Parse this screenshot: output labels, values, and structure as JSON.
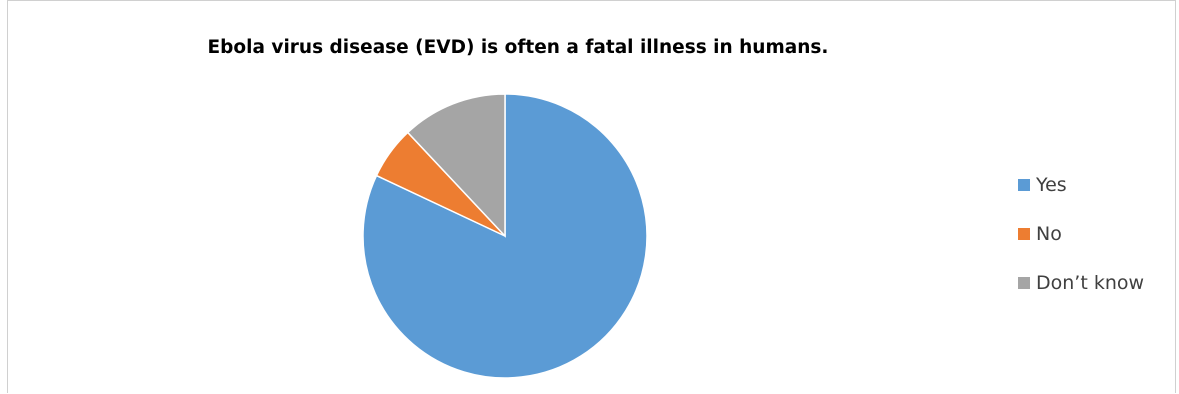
{
  "chart_data": {
    "type": "pie",
    "title": "Ebola virus disease (EVD) is often a fatal illness in humans.",
    "categories": [
      "Yes",
      "No",
      "Don’t know"
    ],
    "values": [
      82,
      6,
      12
    ],
    "colors": [
      "#5b9bd5",
      "#ed7d31",
      "#a5a5a5"
    ],
    "legend_position": "right",
    "start_angle": "12 o'clock",
    "direction": "clockwise"
  }
}
